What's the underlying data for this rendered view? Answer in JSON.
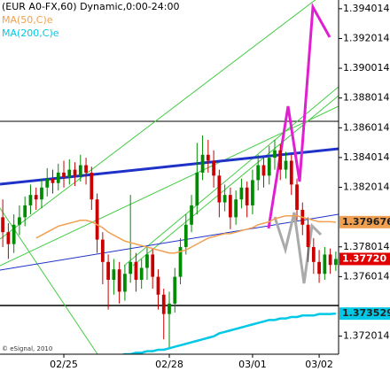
{
  "chart_data": {
    "type": "candlestick",
    "title": "(EUR A0-FX,60) Dynamic,0:00-24:00",
    "credit": "© eSignal, 2010",
    "categories": [
      null,
      null,
      null,
      null,
      null,
      null,
      null,
      null,
      null,
      null,
      null,
      "02/25",
      null,
      null,
      null,
      null,
      null,
      null,
      null,
      null,
      null,
      null,
      null,
      null,
      null,
      null,
      null,
      null,
      null,
      null,
      "02/28",
      null,
      null,
      null,
      null,
      null,
      null,
      null,
      null,
      null,
      null,
      null,
      null,
      null,
      null,
      "03/01",
      null,
      null,
      null,
      null,
      null,
      null,
      null,
      null,
      null,
      null,
      null,
      "03/02",
      null,
      null,
      null
    ],
    "open": [
      1.38,
      1.379,
      1.3782,
      1.3795,
      1.38,
      1.3808,
      1.3815,
      1.3812,
      1.382,
      1.3826,
      1.3823,
      1.383,
      1.3827,
      1.3832,
      1.3828,
      1.3835,
      1.383,
      1.3812,
      1.3785,
      1.377,
      1.3758,
      1.3765,
      1.375,
      1.3762,
      1.377,
      1.3758,
      1.3766,
      1.3775,
      1.376,
      1.3748,
      1.3735,
      1.3742,
      1.376,
      1.378,
      1.3795,
      1.3808,
      1.383,
      1.3842,
      1.3838,
      1.3828,
      1.381,
      1.3815,
      1.38,
      1.3812,
      1.382,
      1.3808,
      1.3825,
      1.3835,
      1.3828,
      1.384,
      1.3845,
      1.3832,
      1.3838,
      1.3822,
      1.3805,
      1.3795,
      1.378,
      1.377,
      1.3762,
      1.3775,
      1.3768
    ],
    "high": [
      1.3812,
      1.3796,
      1.3802,
      1.3808,
      1.3814,
      1.3822,
      1.382,
      1.3826,
      1.3833,
      1.3832,
      1.3836,
      1.3838,
      1.3839,
      1.3837,
      1.3842,
      1.384,
      1.3834,
      1.3816,
      1.379,
      1.3775,
      1.3772,
      1.377,
      1.3768,
      1.3815,
      1.3776,
      1.3772,
      1.378,
      1.3779,
      1.3765,
      1.3752,
      1.375,
      1.3766,
      1.3786,
      1.3802,
      1.3815,
      1.385,
      1.3855,
      1.3852,
      1.3845,
      1.3832,
      1.3822,
      1.382,
      1.3818,
      1.3826,
      1.3824,
      1.3832,
      1.3842,
      1.384,
      1.3848,
      1.3852,
      1.3849,
      1.3844,
      1.3842,
      1.3826,
      1.381,
      1.38,
      1.3786,
      1.3778,
      1.378,
      1.3779,
      1.3777
    ],
    "low": [
      1.378,
      1.3772,
      1.3776,
      1.3788,
      1.3794,
      1.3802,
      1.3805,
      1.3806,
      1.3814,
      1.3816,
      1.3818,
      1.382,
      1.3822,
      1.3821,
      1.3824,
      1.3822,
      1.3805,
      1.3776,
      1.3755,
      1.3738,
      1.3748,
      1.3742,
      1.3744,
      1.3756,
      1.375,
      1.3752,
      1.3758,
      1.3752,
      1.3738,
      1.3718,
      1.3712,
      1.3736,
      1.3755,
      1.3775,
      1.379,
      1.3802,
      1.3825,
      1.383,
      1.382,
      1.38,
      1.3804,
      1.3792,
      1.3795,
      1.3806,
      1.38,
      1.3802,
      1.3818,
      1.382,
      1.3822,
      1.3832,
      1.3825,
      1.3826,
      1.3815,
      1.3798,
      1.3788,
      1.377,
      1.3762,
      1.3756,
      1.3758,
      1.3762,
      1.3764
    ],
    "close": [
      1.379,
      1.3782,
      1.3795,
      1.38,
      1.3808,
      1.3815,
      1.3812,
      1.382,
      1.3826,
      1.3823,
      1.383,
      1.3827,
      1.3832,
      1.3828,
      1.3835,
      1.383,
      1.3812,
      1.3785,
      1.377,
      1.3758,
      1.3765,
      1.375,
      1.3762,
      1.377,
      1.3758,
      1.3766,
      1.3775,
      1.376,
      1.3748,
      1.3735,
      1.3742,
      1.376,
      1.378,
      1.3795,
      1.3808,
      1.383,
      1.3842,
      1.3838,
      1.3828,
      1.381,
      1.3815,
      1.38,
      1.3812,
      1.382,
      1.3808,
      1.3825,
      1.3835,
      1.3828,
      1.384,
      1.3845,
      1.3832,
      1.3838,
      1.3822,
      1.3805,
      1.3795,
      1.378,
      1.377,
      1.3762,
      1.3775,
      1.3768,
      1.3772
    ],
    "up_color": "#008c00",
    "down_color": "#c80000",
    "series": [
      {
        "name": "MA(50,C)e",
        "color": "#f0a050",
        "values": [
          null,
          null,
          null,
          null,
          null,
          null,
          1.3786,
          1.3788,
          1.379,
          1.3792,
          1.3794,
          1.3795,
          1.3796,
          1.3797,
          1.3798,
          1.3798,
          1.3797,
          1.3795,
          1.3793,
          1.379,
          1.3788,
          1.3786,
          1.3784,
          1.3783,
          1.3782,
          1.3781,
          1.378,
          1.3779,
          1.3778,
          1.3777,
          1.3776,
          1.3776,
          1.3777,
          1.3778,
          1.378,
          1.3782,
          1.3784,
          1.3786,
          1.3787,
          1.3788,
          1.3789,
          1.3789,
          1.379,
          1.3791,
          1.3792,
          1.3793,
          1.3795,
          1.3796,
          1.3797,
          1.3799,
          1.38,
          1.3801,
          1.3801,
          1.3801,
          1.38,
          1.3799,
          1.3798,
          1.3797,
          1.3797,
          1.3797,
          1.379676
        ]
      },
      {
        "name": "MA(200,C)e",
        "color": "#00c8e6",
        "values": [
          null,
          null,
          null,
          null,
          null,
          null,
          null,
          null,
          null,
          null,
          null,
          null,
          null,
          null,
          null,
          null,
          null,
          null,
          null,
          null,
          1.3707,
          1.3707,
          1.3708,
          1.3708,
          1.3709,
          1.3709,
          1.371,
          1.371,
          1.3711,
          1.3711,
          1.3712,
          1.3713,
          1.3714,
          1.3715,
          1.3716,
          1.3717,
          1.3718,
          1.3719,
          1.372,
          1.3722,
          1.3723,
          1.3724,
          1.3725,
          1.3726,
          1.3727,
          1.3728,
          1.3729,
          1.373,
          1.3731,
          1.3731,
          1.3732,
          1.3732,
          1.3733,
          1.3733,
          1.3734,
          1.3734,
          1.3734,
          1.3735,
          1.3735,
          1.3735,
          1.373529
        ]
      }
    ],
    "price_labels": {
      "values": [
        1.379676,
        1.3772,
        1.373529
      ],
      "value_labels": [
        "1.379676",
        "1.37720",
        "1.373529"
      ],
      "colors": [
        "#f0a050",
        "#e00000",
        "#00c8e6"
      ]
    },
    "ylim": [
      1.3708,
      1.3946
    ],
    "yticks": [
      1.394014,
      1.392014,
      1.390014,
      1.388014,
      1.386014,
      1.384014,
      1.382014,
      1.378014,
      1.376014,
      1.372014
    ],
    "grid": false
  }
}
